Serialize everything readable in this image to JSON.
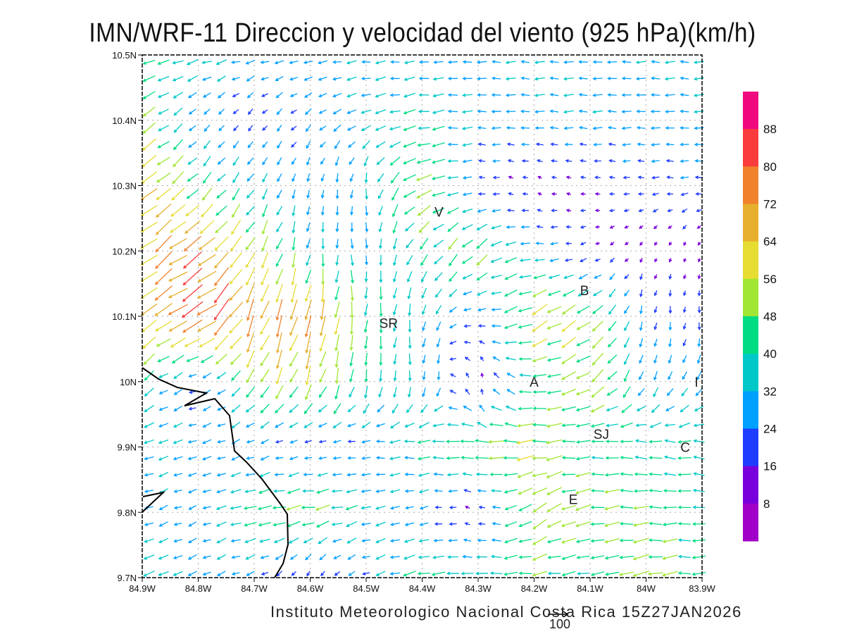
{
  "title": "IMN/WRF-11 Direccion y velocidad del viento (925 hPa)(km/h)",
  "footer": "Instituto Meteorologico Nacional Costa Rica  15Z27JAN2026",
  "reference_vector": {
    "label": "100",
    "value": 100
  },
  "chart_data": {
    "type": "vector-field",
    "units": "km/h",
    "level": "925 hPa",
    "xlim": [
      -84.9,
      -83.9
    ],
    "ylim": [
      9.7,
      10.5
    ],
    "x_ticks": [
      "84.9W",
      "84.8W",
      "84.7W",
      "84.6W",
      "84.5W",
      "84.4W",
      "84.3W",
      "84.2W",
      "84.1W",
      "84W",
      "83.9W"
    ],
    "y_ticks": [
      "10.5N",
      "10.4N",
      "10.3N",
      "10.2N",
      "10.1N",
      "10N",
      "9.9N",
      "9.8N",
      "9.7N"
    ],
    "grid": true,
    "colorbar": {
      "labels": [
        "88",
        "80",
        "72",
        "64",
        "56",
        "48",
        "40",
        "32",
        "24",
        "16",
        "8"
      ],
      "colors": [
        "#f0087f",
        "#fa3c3c",
        "#f0822c",
        "#e6af2d",
        "#e6dc32",
        "#a0e632",
        "#00dc82",
        "#00c8c8",
        "#00a0ff",
        "#1e3cff",
        "#7800dc",
        "#a000c8"
      ],
      "placement": "right"
    },
    "cities": [
      {
        "label": "V",
        "lon": -84.37,
        "lat": 10.26
      },
      {
        "label": "B",
        "lon": -84.11,
        "lat": 10.14
      },
      {
        "label": "SR",
        "lon": -84.46,
        "lat": 10.09
      },
      {
        "label": "A",
        "lon": -84.2,
        "lat": 10.0
      },
      {
        "label": "I",
        "lon": -83.91,
        "lat": 10.0
      },
      {
        "label": "SJ",
        "lon": -84.08,
        "lat": 9.92
      },
      {
        "label": "C",
        "lon": -83.93,
        "lat": 9.9
      },
      {
        "label": "E",
        "lon": -84.13,
        "lat": 9.82
      }
    ],
    "wind_field_approx": {
      "note_lons": [
        -84.9,
        -84.8,
        -84.7,
        -84.6,
        -84.5,
        -84.4,
        -84.3,
        -84.2,
        -84.1,
        -84.0,
        -83.9
      ],
      "lats": [
        10.5,
        10.4,
        10.3,
        10.2,
        10.1,
        10.0,
        9.9,
        9.8,
        9.7
      ],
      "direction_toward_deg": [
        [
          195,
          195,
          190,
          190,
          185,
          185,
          180,
          180,
          180,
          180,
          180
        ],
        [
          210,
          225,
          230,
          220,
          200,
          190,
          180,
          180,
          180,
          180,
          180
        ],
        [
          215,
          225,
          235,
          260,
          265,
          200,
          180,
          160,
          170,
          180,
          180
        ],
        [
          220,
          215,
          240,
          260,
          280,
          230,
          225,
          180,
          200,
          240,
          250
        ],
        [
          215,
          210,
          250,
          255,
          265,
          260,
          180,
          210,
          215,
          260,
          270
        ],
        [
          220,
          200,
          240,
          250,
          265,
          270,
          100,
          180,
          215,
          250,
          235
        ],
        [
          200,
          195,
          200,
          190,
          180,
          180,
          180,
          185,
          180,
          170,
          175
        ],
        [
          200,
          200,
          190,
          190,
          195,
          195,
          160,
          220,
          190,
          180,
          180
        ],
        [
          200,
          205,
          200,
          240,
          200,
          190,
          180,
          185,
          190,
          195,
          180
        ]
      ],
      "speed_kmh": [
        [
          40,
          38,
          30,
          30,
          30,
          30,
          30,
          30,
          30,
          30,
          30
        ],
        [
          50,
          25,
          20,
          25,
          35,
          40,
          30,
          30,
          30,
          30,
          30
        ],
        [
          68,
          45,
          35,
          25,
          30,
          55,
          20,
          12,
          15,
          20,
          25
        ],
        [
          70,
          75,
          55,
          35,
          30,
          40,
          50,
          30,
          15,
          12,
          10
        ],
        [
          60,
          85,
          70,
          75,
          45,
          35,
          20,
          60,
          50,
          25,
          20
        ],
        [
          40,
          20,
          50,
          55,
          40,
          30,
          12,
          40,
          55,
          30,
          30
        ],
        [
          35,
          30,
          25,
          20,
          25,
          40,
          50,
          55,
          40,
          40,
          40
        ],
        [
          30,
          25,
          45,
          50,
          35,
          25,
          12,
          55,
          50,
          45,
          40
        ],
        [
          40,
          30,
          25,
          15,
          25,
          45,
          40,
          45,
          40,
          55,
          40
        ]
      ]
    }
  }
}
